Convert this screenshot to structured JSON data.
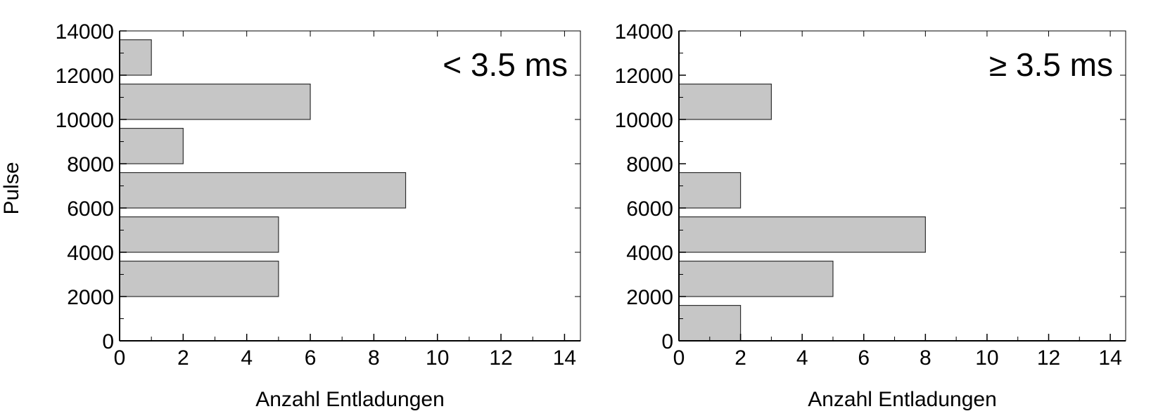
{
  "chart_data": [
    {
      "type": "bar",
      "orientation": "horizontal",
      "annotation": "< 3.5 ms",
      "xlabel": "Anzahl Entladungen",
      "ylabel": "Pulse",
      "xlim": [
        0,
        14.5
      ],
      "ylim": [
        0,
        14000
      ],
      "x_ticks": [
        0,
        2,
        4,
        6,
        8,
        10,
        12,
        14
      ],
      "y_ticks": [
        0,
        2000,
        4000,
        6000,
        8000,
        10000,
        12000,
        14000
      ],
      "bins": [
        {
          "y_from": 2000,
          "y_to": 3600,
          "value": 5
        },
        {
          "y_from": 4000,
          "y_to": 5600,
          "value": 5
        },
        {
          "y_from": 6000,
          "y_to": 7600,
          "value": 9
        },
        {
          "y_from": 8000,
          "y_to": 9600,
          "value": 2
        },
        {
          "y_from": 10000,
          "y_to": 11600,
          "value": 6
        },
        {
          "y_from": 12000,
          "y_to": 13600,
          "value": 1
        }
      ]
    },
    {
      "type": "bar",
      "orientation": "horizontal",
      "annotation": "≥ 3.5 ms",
      "xlabel": "Anzahl Entladungen",
      "ylabel": "",
      "xlim": [
        0,
        14.5
      ],
      "ylim": [
        0,
        14000
      ],
      "x_ticks": [
        0,
        2,
        4,
        6,
        8,
        10,
        12,
        14
      ],
      "y_ticks": [
        0,
        2000,
        4000,
        6000,
        8000,
        10000,
        12000,
        14000
      ],
      "bins": [
        {
          "y_from": 0,
          "y_to": 1600,
          "value": 2
        },
        {
          "y_from": 2000,
          "y_to": 3600,
          "value": 5
        },
        {
          "y_from": 4000,
          "y_to": 5600,
          "value": 8
        },
        {
          "y_from": 6000,
          "y_to": 7600,
          "value": 2
        },
        {
          "y_from": 10000,
          "y_to": 11600,
          "value": 3
        }
      ]
    }
  ],
  "style": {
    "bar_fill": "#c6c6c6",
    "bar_stroke": "#303030",
    "axis_color": "#000000"
  }
}
